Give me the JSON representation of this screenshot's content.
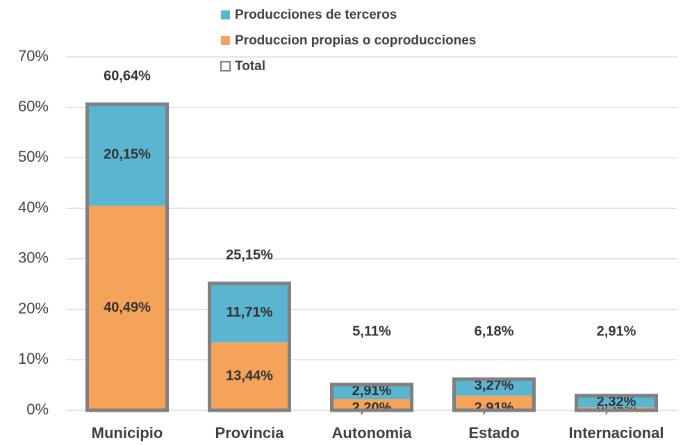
{
  "chart_data": {
    "type": "stacked_bar",
    "categories": [
      "Municipio",
      "Provincia",
      "Autonomia",
      "Estado",
      "Internacional"
    ],
    "series": [
      {
        "name": "Producciones de terceros",
        "color": "#5bb4d0",
        "values": [
          20.15,
          11.71,
          2.91,
          3.27,
          2.32
        ],
        "value_labels": [
          "20,15%",
          "11,71%",
          "2,91%",
          "3,27%",
          "2,32%"
        ]
      },
      {
        "name": "Produccion propias o coproducciones",
        "color": "#f5a25a",
        "values": [
          40.49,
          13.44,
          2.2,
          2.91,
          0.59
        ],
        "value_labels": [
          "40,49%",
          "13,44%",
          "2,20%",
          "2,91%",
          "0,59%"
        ]
      },
      {
        "name": "Total",
        "color": "#808080",
        "values": [
          60.64,
          25.15,
          5.11,
          6.18,
          2.91
        ],
        "value_labels": [
          "60,64%",
          "25,15%",
          "5,11%",
          "6,18%",
          "2,91%"
        ]
      }
    ],
    "ylim": [
      0,
      70
    ],
    "yticks": [
      {
        "value": 0,
        "label": "0%"
      },
      {
        "value": 10,
        "label": "10%"
      },
      {
        "value": 20,
        "label": "20%"
      },
      {
        "value": 30,
        "label": "30%"
      },
      {
        "value": 40,
        "label": "40%"
      },
      {
        "value": 50,
        "label": "50%"
      },
      {
        "value": 60,
        "label": "60%"
      },
      {
        "value": 70,
        "label": "70%"
      }
    ],
    "grid": true
  }
}
